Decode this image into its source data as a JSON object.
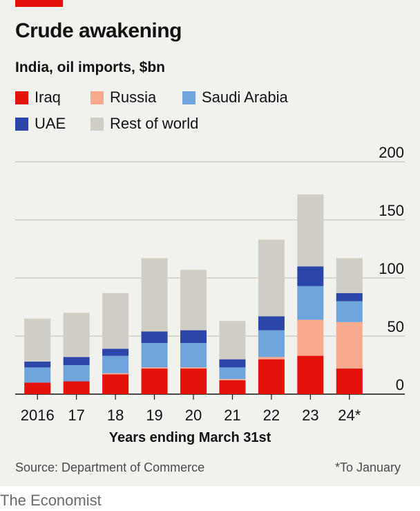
{
  "header": {
    "title": "Crude awakening",
    "subtitle": "India, oil imports, $bn"
  },
  "footer": {
    "source": "Source: Department of Commerce",
    "footnote": "*To January",
    "brand": "The Economist"
  },
  "colors": {
    "Iraq": "#e3120b",
    "Russia": "#f9a98e",
    "Saudi Arabia": "#6ea5dc",
    "UAE": "#2c45a8",
    "Rest of world": "#cfcdc4",
    "accent": "#e3120b"
  },
  "chart_data": {
    "type": "bar",
    "stacked": true,
    "title": "Crude awakening",
    "subtitle": "India, oil imports, $bn",
    "xlabel": "Years ending March 31st",
    "ylabel": "",
    "ylim": [
      0,
      200
    ],
    "yticks": [
      0,
      50,
      100,
      150,
      200
    ],
    "grid": true,
    "legend_position": "top-left",
    "categories": [
      "2016",
      "17",
      "18",
      "19",
      "20",
      "21",
      "22",
      "23",
      "24*"
    ],
    "series": [
      {
        "name": "Iraq",
        "values": [
          10,
          11,
          17,
          22,
          22,
          12,
          30,
          33,
          22
        ]
      },
      {
        "name": "Russia",
        "values": [
          0,
          0,
          1,
          1,
          1,
          1,
          2,
          31,
          40
        ]
      },
      {
        "name": "Saudi Arabia",
        "values": [
          13,
          14,
          15,
          21,
          21,
          10,
          23,
          29,
          18
        ]
      },
      {
        "name": "UAE",
        "values": [
          5,
          7,
          6,
          10,
          11,
          7,
          12,
          17,
          7
        ]
      },
      {
        "name": "Rest of world",
        "values": [
          37,
          38,
          48,
          63,
          52,
          33,
          66,
          62,
          30
        ]
      }
    ]
  }
}
